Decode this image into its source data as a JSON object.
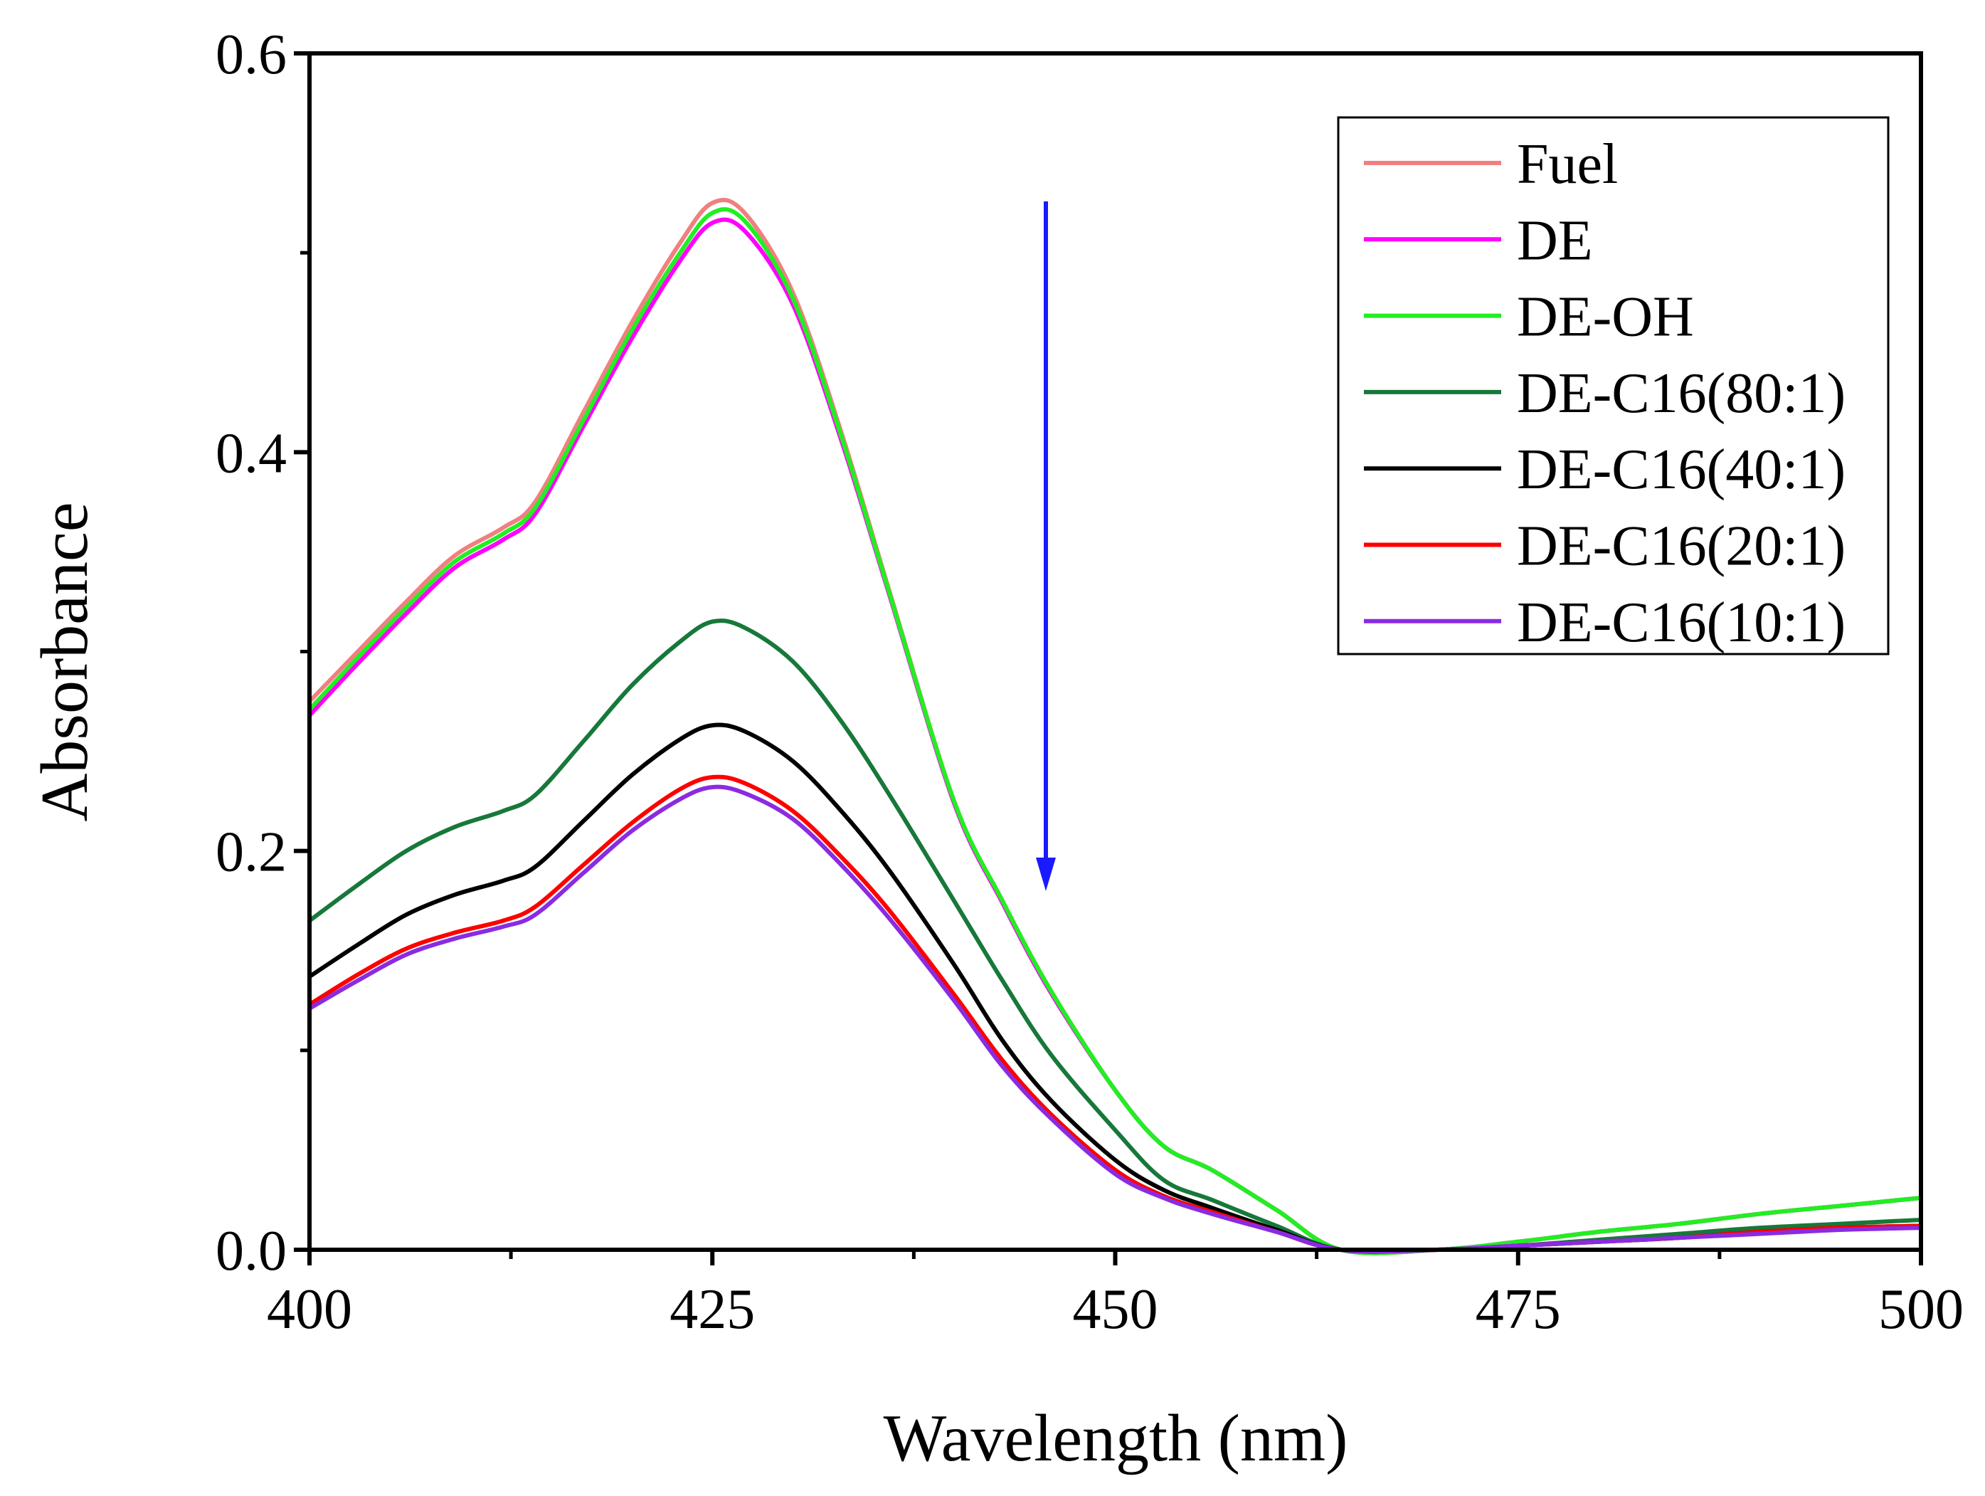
{
  "chart_data": {
    "type": "line",
    "xlabel": "Wavelength (nm)",
    "ylabel": "Absorbance",
    "xlim": [
      400,
      500
    ],
    "ylim": [
      0,
      0.6
    ],
    "xticks": [
      400,
      425,
      450,
      475,
      500
    ],
    "xtick_labels": [
      "400",
      "425",
      "450",
      "475",
      "500"
    ],
    "yticks": [
      0,
      0.2,
      0.4,
      0.6
    ],
    "ytick_labels": [
      "0.0",
      "0.2",
      "0.4",
      "0.6"
    ],
    "grid": false,
    "legend_position": "top-right",
    "annotation": "downward arrow indicating decreasing absorbance",
    "arrow_color": "#1a1aff",
    "x": [
      400,
      403,
      406,
      409,
      412,
      414,
      417,
      420,
      423,
      425,
      427,
      430,
      433,
      436,
      440,
      443,
      446,
      450,
      453,
      456,
      460,
      464,
      470,
      475,
      480,
      485,
      490,
      495,
      500
    ],
    "series": [
      {
        "name": "Fuel",
        "color": "#f08080",
        "values": [
          0.275,
          0.3,
          0.325,
          0.348,
          0.362,
          0.375,
          0.42,
          0.465,
          0.505,
          0.525,
          0.52,
          0.48,
          0.41,
          0.33,
          0.225,
          0.175,
          0.13,
          0.08,
          0.052,
          0.04,
          0.02,
          0.0,
          0.0,
          0.004,
          0.009,
          0.013,
          0.018,
          0.022,
          0.026
        ]
      },
      {
        "name": "DE",
        "color": "#ff00ff",
        "values": [
          0.268,
          0.294,
          0.319,
          0.342,
          0.356,
          0.369,
          0.413,
          0.457,
          0.496,
          0.515,
          0.511,
          0.474,
          0.406,
          0.328,
          0.224,
          0.174,
          0.129,
          0.08,
          0.052,
          0.04,
          0.02,
          0.0,
          0.0,
          0.004,
          0.009,
          0.013,
          0.018,
          0.022,
          0.026
        ]
      },
      {
        "name": "DE-OH",
        "color": "#22ee22",
        "values": [
          0.271,
          0.297,
          0.322,
          0.345,
          0.359,
          0.372,
          0.416,
          0.461,
          0.5,
          0.52,
          0.516,
          0.477,
          0.408,
          0.329,
          0.225,
          0.175,
          0.13,
          0.08,
          0.052,
          0.04,
          0.02,
          0.0,
          0.0,
          0.004,
          0.009,
          0.013,
          0.018,
          0.022,
          0.026
        ]
      },
      {
        "name": "DE-C16(80:1)",
        "color": "#17783a",
        "values": [
          0.165,
          0.183,
          0.2,
          0.212,
          0.22,
          0.228,
          0.255,
          0.283,
          0.305,
          0.315,
          0.312,
          0.295,
          0.265,
          0.228,
          0.175,
          0.135,
          0.098,
          0.06,
          0.035,
          0.025,
          0.012,
          0.0,
          0.0,
          0.002,
          0.005,
          0.008,
          0.011,
          0.013,
          0.015
        ]
      },
      {
        "name": "DE-C16(40:1)",
        "color": "#000000",
        "values": [
          0.137,
          0.153,
          0.168,
          0.178,
          0.185,
          0.192,
          0.215,
          0.238,
          0.256,
          0.263,
          0.26,
          0.245,
          0.22,
          0.19,
          0.143,
          0.105,
          0.075,
          0.045,
          0.03,
          0.021,
          0.01,
          0.0,
          0.0,
          0.002,
          0.004,
          0.006,
          0.009,
          0.011,
          0.012
        ]
      },
      {
        "name": "DE-C16(20:1)",
        "color": "#ff0000",
        "values": [
          0.123,
          0.138,
          0.151,
          0.159,
          0.165,
          0.172,
          0.193,
          0.214,
          0.231,
          0.237,
          0.234,
          0.22,
          0.197,
          0.17,
          0.128,
          0.095,
          0.068,
          0.04,
          0.027,
          0.019,
          0.009,
          0.0,
          0.0,
          0.002,
          0.004,
          0.006,
          0.009,
          0.011,
          0.012
        ]
      },
      {
        "name": "DE-C16(10:1)",
        "color": "#8a2be2",
        "values": [
          0.121,
          0.135,
          0.148,
          0.156,
          0.162,
          0.168,
          0.189,
          0.21,
          0.226,
          0.232,
          0.229,
          0.216,
          0.193,
          0.166,
          0.125,
          0.092,
          0.066,
          0.038,
          0.026,
          0.018,
          0.009,
          0.0,
          0.0,
          0.002,
          0.004,
          0.006,
          0.008,
          0.01,
          0.011
        ]
      }
    ]
  }
}
